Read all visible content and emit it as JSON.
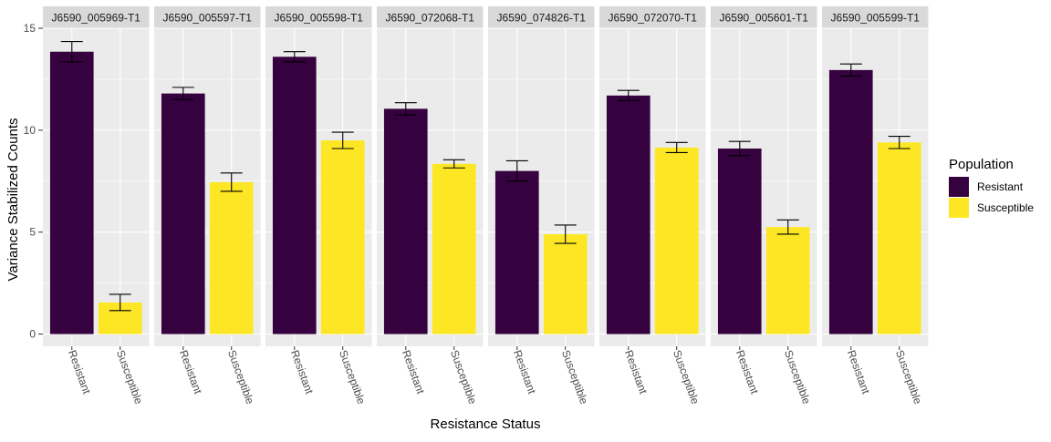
{
  "chart_data": {
    "type": "bar",
    "facets": [
      {
        "label": "J6590_005969-T1",
        "series": [
          {
            "name": "Resistant",
            "value": 13.85,
            "err_low": 13.35,
            "err_high": 14.35
          },
          {
            "name": "Susceptible",
            "value": 1.55,
            "err_low": 1.15,
            "err_high": 1.95
          }
        ]
      },
      {
        "label": "J6590_005597-T1",
        "series": [
          {
            "name": "Resistant",
            "value": 11.8,
            "err_low": 11.5,
            "err_high": 12.1
          },
          {
            "name": "Susceptible",
            "value": 7.45,
            "err_low": 7.0,
            "err_high": 7.9
          }
        ]
      },
      {
        "label": "J6590_005598-T1",
        "series": [
          {
            "name": "Resistant",
            "value": 13.6,
            "err_low": 13.35,
            "err_high": 13.85
          },
          {
            "name": "Susceptible",
            "value": 9.5,
            "err_low": 9.1,
            "err_high": 9.9
          }
        ]
      },
      {
        "label": "J6590_072068-T1",
        "series": [
          {
            "name": "Resistant",
            "value": 11.05,
            "err_low": 10.75,
            "err_high": 11.35
          },
          {
            "name": "Susceptible",
            "value": 8.35,
            "err_low": 8.15,
            "err_high": 8.55
          }
        ]
      },
      {
        "label": "J6590_074826-T1",
        "series": [
          {
            "name": "Resistant",
            "value": 8.0,
            "err_low": 7.5,
            "err_high": 8.5
          },
          {
            "name": "Susceptible",
            "value": 4.9,
            "err_low": 4.45,
            "err_high": 5.35
          }
        ]
      },
      {
        "label": "J6590_072070-T1",
        "series": [
          {
            "name": "Resistant",
            "value": 11.7,
            "err_low": 11.45,
            "err_high": 11.95
          },
          {
            "name": "Susceptible",
            "value": 9.15,
            "err_low": 8.9,
            "err_high": 9.4
          }
        ]
      },
      {
        "label": "J6590_005601-T1",
        "series": [
          {
            "name": "Resistant",
            "value": 9.1,
            "err_low": 8.75,
            "err_high": 9.45
          },
          {
            "name": "Susceptible",
            "value": 5.25,
            "err_low": 4.9,
            "err_high": 5.6
          }
        ]
      },
      {
        "label": "J6590_005599-T1",
        "series": [
          {
            "name": "Resistant",
            "value": 12.95,
            "err_low": 12.65,
            "err_high": 13.25
          },
          {
            "name": "Susceptible",
            "value": 9.4,
            "err_low": 9.1,
            "err_high": 9.7
          }
        ]
      }
    ],
    "categories": [
      "Resistant",
      "Susceptible"
    ],
    "xlabel": "Resistance Status",
    "ylabel": "Variance Stabilized Counts",
    "ylim": [
      -0.6,
      15
    ],
    "yticks": [
      0,
      5,
      10,
      15
    ],
    "grid": true,
    "legend": {
      "title": "Population",
      "position": "right",
      "entries": [
        {
          "name": "Resistant",
          "color": "#36013f"
        },
        {
          "name": "Susceptible",
          "color": "#fde725"
        }
      ]
    },
    "colors": {
      "Resistant": "#36013f",
      "Susceptible": "#fde725"
    }
  }
}
